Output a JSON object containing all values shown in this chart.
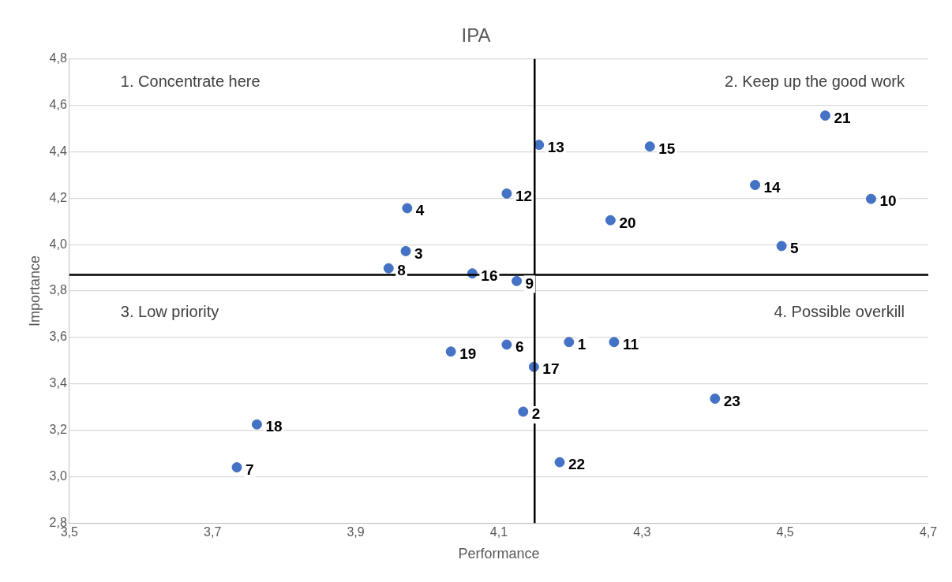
{
  "chart_data": {
    "type": "scatter",
    "title": "IPA",
    "xlabel": "Performance",
    "ylabel": "Importance",
    "series": [
      {
        "color": "#4472c4",
        "x": [
          4.198,
          4.134,
          3.97,
          3.972,
          4.495,
          4.111,
          3.734,
          3.946,
          4.125,
          4.62,
          4.261,
          4.111,
          4.156,
          4.458,
          4.311,
          4.063,
          4.149,
          3.762,
          4.033,
          4.256,
          4.556,
          4.185,
          4.402
        ],
        "values": [
          3.58,
          3.28,
          3.972,
          4.157,
          3.994,
          3.569,
          3.04,
          3.898,
          3.843,
          4.197,
          3.58,
          4.22,
          4.43,
          4.257,
          4.423,
          3.876,
          3.473,
          3.225,
          3.539,
          4.105,
          4.556,
          3.062,
          3.336
        ]
      }
    ],
    "marker": "circle",
    "xlim": [
      3.5,
      4.7
    ],
    "xticks": [
      {
        "value": 3.5,
        "label": "3,5"
      },
      {
        "value": 3.7,
        "label": "3,7"
      },
      {
        "value": 3.9,
        "label": "3,9"
      },
      {
        "value": 4.1,
        "label": "4,1"
      },
      {
        "value": 4.3,
        "label": "4,3"
      },
      {
        "value": 4.5,
        "label": "4,5"
      },
      {
        "value": 4.7,
        "label": "4,7"
      }
    ],
    "ylim": [
      2.8,
      4.8
    ],
    "yticks": [
      {
        "value": 2.8,
        "label": "2,8"
      },
      {
        "value": 3.0,
        "label": "3,0"
      },
      {
        "value": 3.2,
        "label": "3,2"
      },
      {
        "value": 3.4,
        "label": "3,4"
      },
      {
        "value": 3.6,
        "label": "3,6"
      },
      {
        "value": 3.8,
        "label": "3,8"
      },
      {
        "value": 4.0,
        "label": "4,0"
      },
      {
        "value": 4.2,
        "label": "4,2"
      },
      {
        "value": 4.4,
        "label": "4,4"
      },
      {
        "value": 4.6,
        "label": "4,6"
      },
      {
        "value": 4.8,
        "label": "4,8"
      }
    ],
    "grid": "y",
    "ref_lines": [
      {
        "axis": "x",
        "value": 4.15,
        "color": "#000000"
      },
      {
        "axis": "y",
        "value": 3.87,
        "color": "#000000"
      }
    ],
    "annotations": [
      "1. Concentrate here",
      "2. Keep up the good work",
      "3. Low priority",
      "4. Possible overkill",
      {
        "text": "1",
        "x": 4.198,
        "y": 3.58
      },
      {
        "text": "2",
        "x": 4.134,
        "y": 3.28
      },
      {
        "text": "3",
        "x": 3.97,
        "y": 3.972
      },
      {
        "text": "4",
        "x": 3.972,
        "y": 4.157
      },
      {
        "text": "5",
        "x": 4.495,
        "y": 3.994
      },
      {
        "text": "6",
        "x": 4.111,
        "y": 3.569
      },
      {
        "text": "7",
        "x": 3.734,
        "y": 3.04
      },
      {
        "text": "8",
        "x": 3.946,
        "y": 3.898
      },
      {
        "text": "9",
        "x": 4.125,
        "y": 3.843
      },
      {
        "text": "10",
        "x": 4.62,
        "y": 4.197
      },
      {
        "text": "11",
        "x": 4.261,
        "y": 3.58
      },
      {
        "text": "12",
        "x": 4.111,
        "y": 4.22
      },
      {
        "text": "13",
        "x": 4.156,
        "y": 4.43
      },
      {
        "text": "14",
        "x": 4.458,
        "y": 4.257
      },
      {
        "text": "15",
        "x": 4.311,
        "y": 4.423
      },
      {
        "text": "16",
        "x": 4.063,
        "y": 3.876
      },
      {
        "text": "17",
        "x": 4.149,
        "y": 3.473
      },
      {
        "text": "18",
        "x": 3.762,
        "y": 3.225
      },
      {
        "text": "19",
        "x": 4.033,
        "y": 3.539
      },
      {
        "text": "20",
        "x": 4.256,
        "y": 4.105
      },
      {
        "text": "21",
        "x": 4.556,
        "y": 4.556
      },
      {
        "text": "22",
        "x": 4.185,
        "y": 3.062
      },
      {
        "text": "23",
        "x": 4.402,
        "y": 3.336
      }
    ]
  }
}
